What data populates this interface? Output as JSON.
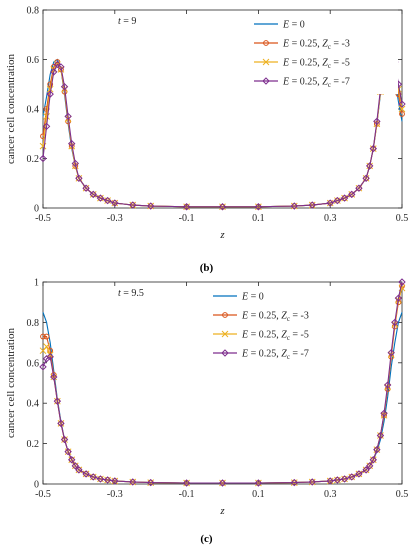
{
  "panels": [
    {
      "caption": "(b)",
      "annotation": "t = 9"
    },
    {
      "caption": "(c)",
      "annotation": "t = 9.5"
    }
  ],
  "chart_data": [
    {
      "type": "line",
      "xlabel": "z",
      "ylabel": "cancer cell concentration",
      "annotation": "t = 9",
      "xlim": [
        -0.5,
        0.5
      ],
      "ylim": [
        0,
        0.8
      ],
      "xticks": [
        -0.5,
        -0.3,
        -0.1,
        0.1,
        0.3,
        0.5
      ],
      "xtick_labels": [
        "-0.5",
        "-0.3",
        "-0.1",
        "0.1",
        "0.3",
        "0.5"
      ],
      "yticks": [
        0,
        0.2,
        0.4,
        0.6,
        0.8
      ],
      "ytick_labels": [
        "0",
        "0.2",
        "0.4",
        "0.6",
        "0.8"
      ],
      "grid": false,
      "legend_position": "top-right",
      "series": [
        {
          "name": "E = 0",
          "legend": [
            "E",
            " = 0"
          ],
          "color": "#0072BD",
          "marker": "none",
          "x": [
            -0.5,
            -0.49,
            -0.48,
            -0.47,
            -0.46,
            -0.45,
            -0.44,
            -0.43,
            -0.42,
            -0.41,
            -0.4,
            -0.38,
            -0.36,
            -0.34,
            -0.32,
            -0.3,
            -0.25,
            -0.2,
            -0.1,
            0,
            0.1,
            0.2,
            0.25,
            0.3,
            0.32,
            0.34,
            0.36,
            0.38,
            0.4,
            0.41,
            0.42,
            0.43,
            0.44,
            0.45,
            0.46,
            0.47,
            0.48,
            0.49,
            0.5
          ],
          "y": [
            0.37,
            0.45,
            0.54,
            0.59,
            0.6,
            0.56,
            0.46,
            0.34,
            0.24,
            0.17,
            0.12,
            0.08,
            0.055,
            0.04,
            0.03,
            0.02,
            0.012,
            0.008,
            0.005,
            0.005,
            0.005,
            0.008,
            0.012,
            0.02,
            0.03,
            0.04,
            0.055,
            0.08,
            0.12,
            0.17,
            0.24,
            0.34,
            0.46,
            0.57,
            0.62,
            0.6,
            0.52,
            0.43,
            0.35
          ]
        },
        {
          "name": "E = 0.25, Zc = -3",
          "legend": [
            "E",
            " = 0.25, ",
            "Z",
            "c",
            " = -3"
          ],
          "color": "#D95319",
          "marker": "circle",
          "x": [
            -0.5,
            -0.49,
            -0.48,
            -0.47,
            -0.46,
            -0.45,
            -0.44,
            -0.43,
            -0.42,
            -0.41,
            -0.4,
            -0.38,
            -0.36,
            -0.34,
            -0.32,
            -0.3,
            -0.25,
            -0.2,
            -0.1,
            0,
            0.1,
            0.2,
            0.25,
            0.3,
            0.32,
            0.34,
            0.36,
            0.38,
            0.4,
            0.41,
            0.42,
            0.43,
            0.44,
            0.45,
            0.46,
            0.47,
            0.48,
            0.49,
            0.5
          ],
          "y": [
            0.29,
            0.4,
            0.5,
            0.57,
            0.59,
            0.56,
            0.47,
            0.35,
            0.25,
            0.17,
            0.12,
            0.08,
            0.055,
            0.04,
            0.03,
            0.02,
            0.012,
            0.008,
            0.005,
            0.005,
            0.005,
            0.008,
            0.012,
            0.02,
            0.03,
            0.04,
            0.055,
            0.08,
            0.12,
            0.17,
            0.24,
            0.34,
            0.47,
            0.58,
            0.63,
            0.62,
            0.55,
            0.46,
            0.38
          ]
        },
        {
          "name": "E = 0.25, Zc = -5",
          "legend": [
            "E",
            " = 0.25, ",
            "Z",
            "c",
            " = -5"
          ],
          "color": "#EDB120",
          "marker": "x",
          "x": [
            -0.5,
            -0.49,
            -0.48,
            -0.47,
            -0.46,
            -0.45,
            -0.44,
            -0.43,
            -0.42,
            -0.41,
            -0.4,
            -0.38,
            -0.36,
            -0.34,
            -0.32,
            -0.3,
            -0.25,
            -0.2,
            -0.1,
            0,
            0.1,
            0.2,
            0.25,
            0.3,
            0.32,
            0.34,
            0.36,
            0.38,
            0.4,
            0.41,
            0.42,
            0.43,
            0.44,
            0.45,
            0.46,
            0.47,
            0.48,
            0.49,
            0.5
          ],
          "y": [
            0.25,
            0.37,
            0.48,
            0.56,
            0.58,
            0.56,
            0.48,
            0.36,
            0.25,
            0.17,
            0.12,
            0.08,
            0.055,
            0.04,
            0.03,
            0.02,
            0.012,
            0.008,
            0.005,
            0.005,
            0.005,
            0.008,
            0.012,
            0.02,
            0.03,
            0.04,
            0.055,
            0.08,
            0.12,
            0.17,
            0.24,
            0.34,
            0.47,
            0.59,
            0.64,
            0.63,
            0.57,
            0.48,
            0.4
          ]
        },
        {
          "name": "E = 0.25, Zc = -7",
          "legend": [
            "E",
            " = 0.25, ",
            "Z",
            "c",
            " = -7"
          ],
          "color": "#7E2F8E",
          "marker": "diamond",
          "x": [
            -0.5,
            -0.49,
            -0.48,
            -0.47,
            -0.46,
            -0.45,
            -0.44,
            -0.43,
            -0.42,
            -0.41,
            -0.4,
            -0.38,
            -0.36,
            -0.34,
            -0.32,
            -0.3,
            -0.25,
            -0.2,
            -0.1,
            0,
            0.1,
            0.2,
            0.25,
            0.3,
            0.32,
            0.34,
            0.36,
            0.38,
            0.4,
            0.41,
            0.42,
            0.43,
            0.44,
            0.45,
            0.46,
            0.47,
            0.48,
            0.49,
            0.5
          ],
          "y": [
            0.2,
            0.33,
            0.46,
            0.55,
            0.58,
            0.57,
            0.49,
            0.37,
            0.26,
            0.18,
            0.12,
            0.08,
            0.055,
            0.04,
            0.03,
            0.02,
            0.012,
            0.008,
            0.005,
            0.005,
            0.005,
            0.008,
            0.012,
            0.02,
            0.03,
            0.04,
            0.055,
            0.08,
            0.12,
            0.17,
            0.24,
            0.35,
            0.48,
            0.6,
            0.65,
            0.64,
            0.59,
            0.5,
            0.42
          ]
        }
      ]
    },
    {
      "type": "line",
      "xlabel": "z",
      "ylabel": "cancer cell concentration",
      "annotation": "t = 9.5",
      "xlim": [
        -0.5,
        0.5
      ],
      "ylim": [
        0,
        1
      ],
      "xticks": [
        -0.5,
        -0.3,
        -0.1,
        0.1,
        0.3,
        0.5
      ],
      "xtick_labels": [
        "-0.5",
        "-0.3",
        "-0.1",
        "0.1",
        "0.3",
        "0.5"
      ],
      "yticks": [
        0,
        0.2,
        0.4,
        0.6,
        0.8,
        1
      ],
      "ytick_labels": [
        "0",
        "0.2",
        "0.4",
        "0.6",
        "0.8",
        "1"
      ],
      "grid": false,
      "legend_position": "top-left",
      "series": [
        {
          "name": "E = 0",
          "legend": [
            "E",
            " = 0"
          ],
          "color": "#0072BD",
          "marker": "none",
          "x": [
            -0.5,
            -0.49,
            -0.48,
            -0.47,
            -0.46,
            -0.45,
            -0.44,
            -0.43,
            -0.42,
            -0.41,
            -0.4,
            -0.38,
            -0.36,
            -0.34,
            -0.32,
            -0.3,
            -0.25,
            -0.2,
            -0.1,
            0,
            0.1,
            0.2,
            0.25,
            0.3,
            0.32,
            0.34,
            0.36,
            0.38,
            0.4,
            0.41,
            0.42,
            0.43,
            0.44,
            0.45,
            0.46,
            0.47,
            0.48,
            0.49,
            0.5
          ],
          "y": [
            0.85,
            0.8,
            0.7,
            0.56,
            0.42,
            0.31,
            0.22,
            0.16,
            0.12,
            0.09,
            0.07,
            0.05,
            0.035,
            0.025,
            0.02,
            0.015,
            0.01,
            0.007,
            0.005,
            0.005,
            0.005,
            0.007,
            0.01,
            0.015,
            0.02,
            0.025,
            0.035,
            0.05,
            0.07,
            0.09,
            0.12,
            0.16,
            0.22,
            0.31,
            0.43,
            0.58,
            0.7,
            0.8,
            0.85
          ]
        },
        {
          "name": "E = 0.25, Zc = -3",
          "legend": [
            "E",
            " = 0.25, ",
            "Z",
            "c",
            " = -3"
          ],
          "color": "#D95319",
          "marker": "circle",
          "x": [
            -0.5,
            -0.49,
            -0.48,
            -0.47,
            -0.46,
            -0.45,
            -0.44,
            -0.43,
            -0.42,
            -0.41,
            -0.4,
            -0.38,
            -0.36,
            -0.34,
            -0.32,
            -0.3,
            -0.25,
            -0.2,
            -0.1,
            0,
            0.1,
            0.2,
            0.25,
            0.3,
            0.32,
            0.34,
            0.36,
            0.38,
            0.4,
            0.41,
            0.42,
            0.43,
            0.44,
            0.45,
            0.46,
            0.47,
            0.48,
            0.49,
            0.5
          ],
          "y": [
            0.73,
            0.73,
            0.66,
            0.54,
            0.41,
            0.3,
            0.22,
            0.16,
            0.12,
            0.09,
            0.07,
            0.05,
            0.035,
            0.025,
            0.02,
            0.015,
            0.01,
            0.007,
            0.005,
            0.005,
            0.005,
            0.007,
            0.01,
            0.015,
            0.02,
            0.025,
            0.035,
            0.05,
            0.07,
            0.09,
            0.12,
            0.17,
            0.24,
            0.34,
            0.47,
            0.63,
            0.78,
            0.9,
            0.98
          ]
        },
        {
          "name": "E = 0.25, Zc = -5",
          "legend": [
            "E",
            " = 0.25, ",
            "Z",
            "c",
            " = -5"
          ],
          "color": "#EDB120",
          "marker": "x",
          "x": [
            -0.5,
            -0.49,
            -0.48,
            -0.47,
            -0.46,
            -0.45,
            -0.44,
            -0.43,
            -0.42,
            -0.41,
            -0.4,
            -0.38,
            -0.36,
            -0.34,
            -0.32,
            -0.3,
            -0.25,
            -0.2,
            -0.1,
            0,
            0.1,
            0.2,
            0.25,
            0.3,
            0.32,
            0.34,
            0.36,
            0.38,
            0.4,
            0.41,
            0.42,
            0.43,
            0.44,
            0.45,
            0.46,
            0.47,
            0.48,
            0.49,
            0.5
          ],
          "y": [
            0.66,
            0.68,
            0.64,
            0.53,
            0.41,
            0.3,
            0.22,
            0.16,
            0.12,
            0.09,
            0.07,
            0.05,
            0.035,
            0.025,
            0.02,
            0.015,
            0.01,
            0.007,
            0.005,
            0.005,
            0.005,
            0.007,
            0.01,
            0.015,
            0.02,
            0.025,
            0.035,
            0.05,
            0.07,
            0.09,
            0.12,
            0.17,
            0.24,
            0.34,
            0.48,
            0.64,
            0.79,
            0.91,
            0.97
          ]
        },
        {
          "name": "E = 0.25, Zc = -7",
          "legend": [
            "E",
            " = 0.25, ",
            "Z",
            "c",
            " = -7"
          ],
          "color": "#7E2F8E",
          "marker": "diamond",
          "x": [
            -0.5,
            -0.49,
            -0.48,
            -0.47,
            -0.46,
            -0.45,
            -0.44,
            -0.43,
            -0.42,
            -0.41,
            -0.4,
            -0.38,
            -0.36,
            -0.34,
            -0.32,
            -0.3,
            -0.25,
            -0.2,
            -0.1,
            0,
            0.1,
            0.2,
            0.25,
            0.3,
            0.32,
            0.34,
            0.36,
            0.38,
            0.4,
            0.41,
            0.42,
            0.43,
            0.44,
            0.45,
            0.46,
            0.47,
            0.48,
            0.49,
            0.5
          ],
          "y": [
            0.58,
            0.62,
            0.63,
            0.53,
            0.41,
            0.3,
            0.22,
            0.16,
            0.12,
            0.09,
            0.07,
            0.05,
            0.035,
            0.025,
            0.02,
            0.015,
            0.01,
            0.007,
            0.005,
            0.005,
            0.005,
            0.007,
            0.01,
            0.015,
            0.02,
            0.025,
            0.035,
            0.05,
            0.07,
            0.09,
            0.12,
            0.17,
            0.24,
            0.35,
            0.49,
            0.65,
            0.8,
            0.92,
            1.0
          ]
        }
      ]
    }
  ]
}
